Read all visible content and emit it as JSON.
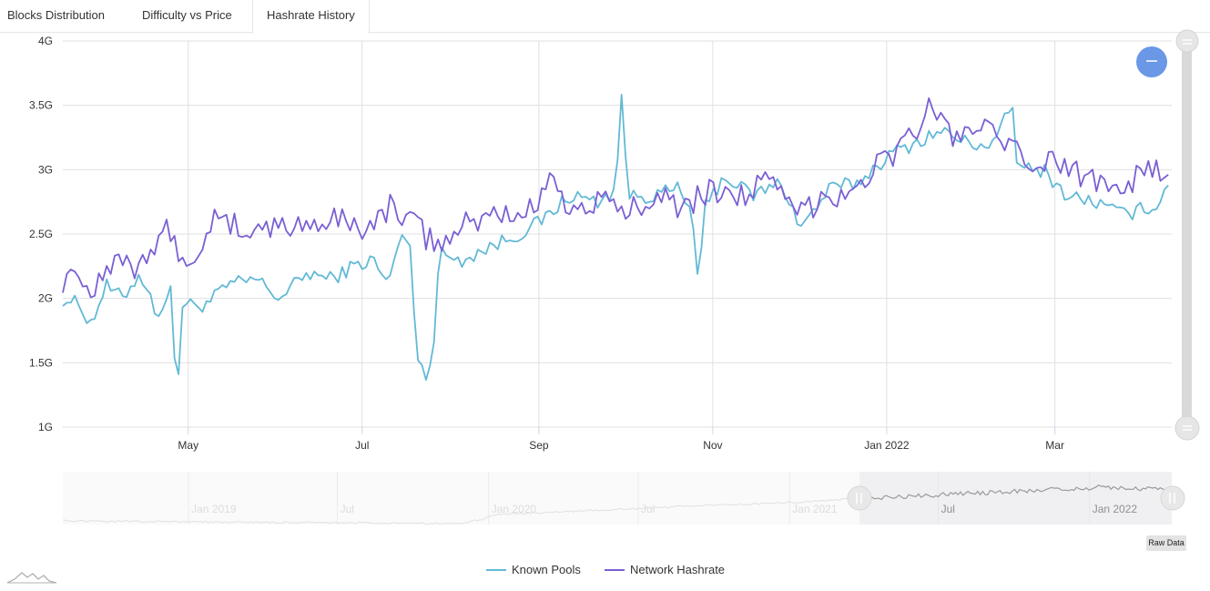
{
  "tabs": [
    {
      "label": "Blocks Distribution",
      "active": false
    },
    {
      "label": "Difficulty vs Price",
      "active": false
    },
    {
      "label": "Hashrate History",
      "active": true
    }
  ],
  "raw_data_label": "Raw Data",
  "colors": {
    "known_pools": "#62b9d6",
    "network_hashrate": "#7b5fd4",
    "grid": "#e0e0e0",
    "zoom_button": "#6a97e6"
  },
  "icons": {
    "zoom_out": "zoom-out-icon",
    "scroll_handle": "scroll-handle-icon",
    "logo": "sparkline-logo-icon"
  },
  "chart_data": {
    "type": "line",
    "title": "",
    "xlabel": "",
    "ylabel": "",
    "x_range": [
      "2021-03-18",
      "2022-04-11"
    ],
    "x_ticks": [
      {
        "date": "2021-05-01",
        "label": "May"
      },
      {
        "date": "2021-07-01",
        "label": "Jul"
      },
      {
        "date": "2021-09-01",
        "label": "Sep"
      },
      {
        "date": "2021-11-01",
        "label": "Nov"
      },
      {
        "date": "2022-01-01",
        "label": "Jan 2022"
      },
      {
        "date": "2022-03-01",
        "label": "Mar"
      }
    ],
    "ylim": [
      1000000000,
      4000000000
    ],
    "y_ticks": [
      {
        "value": 1000000000,
        "label": "1G"
      },
      {
        "value": 1500000000,
        "label": "1.5G"
      },
      {
        "value": 2000000000,
        "label": "2G"
      },
      {
        "value": 2500000000,
        "label": "2.5G"
      },
      {
        "value": 3000000000,
        "label": "3G"
      },
      {
        "value": 3500000000,
        "label": "3.5G"
      },
      {
        "value": 4000000000,
        "label": "4G"
      }
    ],
    "grid": true,
    "legend_position": "bottom-center",
    "series": [
      {
        "name": "Known Pools",
        "color": "#62b9d6",
        "points": [
          [
            "2021-03-18",
            2.0
          ],
          [
            "2021-03-24",
            1.95
          ],
          [
            "2021-03-28",
            1.8
          ],
          [
            "2021-04-02",
            2.1
          ],
          [
            "2021-04-08",
            2.0
          ],
          [
            "2021-04-14",
            2.2
          ],
          [
            "2021-04-20",
            1.88
          ],
          [
            "2021-04-25",
            2.05
          ],
          [
            "2021-04-27",
            1.22
          ],
          [
            "2021-04-29",
            1.95
          ],
          [
            "2021-05-07",
            1.95
          ],
          [
            "2021-05-15",
            2.1
          ],
          [
            "2021-05-25",
            2.15
          ],
          [
            "2021-06-02",
            2.0
          ],
          [
            "2021-06-12",
            2.2
          ],
          [
            "2021-06-20",
            2.15
          ],
          [
            "2021-06-28",
            2.25
          ],
          [
            "2021-07-05",
            2.3
          ],
          [
            "2021-07-10",
            2.1
          ],
          [
            "2021-07-14",
            2.45
          ],
          [
            "2021-07-18",
            2.45
          ],
          [
            "2021-07-20",
            1.55
          ],
          [
            "2021-07-23",
            1.4
          ],
          [
            "2021-07-26",
            1.6
          ],
          [
            "2021-07-28",
            2.35
          ],
          [
            "2021-08-05",
            2.3
          ],
          [
            "2021-08-15",
            2.4
          ],
          [
            "2021-08-25",
            2.5
          ],
          [
            "2021-09-02",
            2.6
          ],
          [
            "2021-09-12",
            2.8
          ],
          [
            "2021-09-22",
            2.75
          ],
          [
            "2021-09-28",
            2.85
          ],
          [
            "2021-09-30",
            3.62
          ],
          [
            "2021-10-02",
            2.8
          ],
          [
            "2021-10-12",
            2.8
          ],
          [
            "2021-10-20",
            2.85
          ],
          [
            "2021-10-25",
            2.65
          ],
          [
            "2021-10-27",
            2.0
          ],
          [
            "2021-10-29",
            2.7
          ],
          [
            "2021-11-05",
            2.95
          ],
          [
            "2021-11-15",
            2.8
          ],
          [
            "2021-11-25",
            2.9
          ],
          [
            "2021-12-02",
            2.55
          ],
          [
            "2021-12-12",
            2.85
          ],
          [
            "2021-12-22",
            2.9
          ],
          [
            "2022-01-01",
            3.1
          ],
          [
            "2022-01-10",
            3.2
          ],
          [
            "2022-01-20",
            3.3
          ],
          [
            "2022-01-30",
            3.2
          ],
          [
            "2022-02-08",
            3.2
          ],
          [
            "2022-02-14",
            3.52
          ],
          [
            "2022-02-16",
            3.0
          ],
          [
            "2022-02-25",
            3.0
          ],
          [
            "2022-03-05",
            2.8
          ],
          [
            "2022-03-15",
            2.75
          ],
          [
            "2022-03-25",
            2.65
          ],
          [
            "2022-04-02",
            2.7
          ],
          [
            "2022-04-07",
            2.75
          ],
          [
            "2022-04-11",
            2.97
          ]
        ]
      },
      {
        "name": "Network Hashrate",
        "color": "#7b5fd4",
        "points": [
          [
            "2021-03-18",
            2.15
          ],
          [
            "2021-03-22",
            2.25
          ],
          [
            "2021-03-27",
            2.05
          ],
          [
            "2021-04-01",
            2.2
          ],
          [
            "2021-04-06",
            2.35
          ],
          [
            "2021-04-12",
            2.25
          ],
          [
            "2021-04-18",
            2.4
          ],
          [
            "2021-04-25",
            2.55
          ],
          [
            "2021-05-01",
            2.15
          ],
          [
            "2021-05-08",
            2.6
          ],
          [
            "2021-05-16",
            2.55
          ],
          [
            "2021-05-25",
            2.55
          ],
          [
            "2021-06-05",
            2.55
          ],
          [
            "2021-06-15",
            2.6
          ],
          [
            "2021-06-25",
            2.6
          ],
          [
            "2021-07-05",
            2.55
          ],
          [
            "2021-07-12",
            2.75
          ],
          [
            "2021-07-20",
            2.55
          ],
          [
            "2021-07-28",
            2.4
          ],
          [
            "2021-08-05",
            2.55
          ],
          [
            "2021-08-15",
            2.65
          ],
          [
            "2021-08-25",
            2.65
          ],
          [
            "2021-09-02",
            2.75
          ],
          [
            "2021-09-05",
            3.1
          ],
          [
            "2021-09-12",
            2.65
          ],
          [
            "2021-09-22",
            2.75
          ],
          [
            "2021-10-02",
            2.65
          ],
          [
            "2021-10-12",
            2.85
          ],
          [
            "2021-10-22",
            2.7
          ],
          [
            "2021-11-01",
            2.85
          ],
          [
            "2021-11-10",
            2.8
          ],
          [
            "2021-11-20",
            2.9
          ],
          [
            "2021-12-01",
            2.65
          ],
          [
            "2021-12-10",
            2.8
          ],
          [
            "2021-12-20",
            2.85
          ],
          [
            "2022-01-01",
            3.1
          ],
          [
            "2022-01-10",
            3.25
          ],
          [
            "2022-01-15",
            3.5
          ],
          [
            "2022-01-25",
            3.25
          ],
          [
            "2022-02-03",
            3.35
          ],
          [
            "2022-02-12",
            3.15
          ],
          [
            "2022-02-22",
            3.05
          ],
          [
            "2022-03-02",
            3.05
          ],
          [
            "2022-03-12",
            2.95
          ],
          [
            "2022-03-22",
            2.9
          ],
          [
            "2022-04-01",
            2.95
          ],
          [
            "2022-04-11",
            3.0
          ]
        ]
      }
    ]
  },
  "navigator": {
    "x_ticks": [
      {
        "date": "2019-01-01",
        "label": "Jan 2019"
      },
      {
        "date": "2019-07-01",
        "label": "Jul"
      },
      {
        "date": "2020-01-01",
        "label": "Jan 2020"
      },
      {
        "date": "2020-07-01",
        "label": "Jul"
      },
      {
        "date": "2021-01-01",
        "label": "Jan 2021"
      },
      {
        "date": "2021-07-01",
        "label": "Jul"
      },
      {
        "date": "2022-01-01",
        "label": "Jan 2022"
      }
    ],
    "range": [
      "2018-08-01",
      "2022-04-11"
    ],
    "selection": [
      "2021-03-18",
      "2022-04-11"
    ]
  }
}
